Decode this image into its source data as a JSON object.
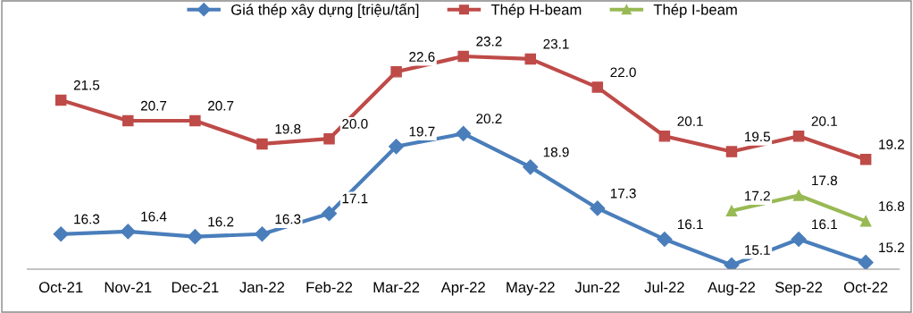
{
  "chart_data": {
    "type": "line",
    "categories": [
      "Oct-21",
      "Nov-21",
      "Dec-21",
      "Jan-22",
      "Feb-22",
      "Mar-22",
      "Apr-22",
      "May-22",
      "Jun-22",
      "Jul-22",
      "Aug-22",
      "Sep-22",
      "Oct-22"
    ],
    "series": [
      {
        "name": "Giá thép xây dựng [triệu/tấn]",
        "color": "#4a7ebb",
        "marker": "diamond",
        "values": [
          16.3,
          16.4,
          16.2,
          16.3,
          17.1,
          19.7,
          20.2,
          18.9,
          17.3,
          16.1,
          15.1,
          16.1,
          15.2
        ],
        "value_labels": [
          "16.3",
          "16.4",
          "16.2",
          "16.3",
          "17.1",
          "19.7",
          "20.2",
          "18.9",
          "17.3",
          "16.1",
          "15.1",
          "16.1",
          "15.2"
        ]
      },
      {
        "name": "Thép H-beam",
        "color": "#be4b48",
        "marker": "square",
        "values": [
          21.5,
          20.7,
          20.7,
          19.8,
          20.0,
          22.6,
          23.2,
          23.1,
          22.0,
          20.1,
          19.5,
          20.1,
          19.2
        ],
        "value_labels": [
          "21.5",
          "20.7",
          "20.7",
          "19.8",
          "20.0",
          "22.6",
          "23.2",
          "23.1",
          "22.0",
          "20.1",
          "19.5",
          "20.1",
          "19.2"
        ]
      },
      {
        "name": "Thép I-beam",
        "color": "#98b954",
        "marker": "triangle",
        "values": [
          null,
          null,
          null,
          null,
          null,
          null,
          null,
          null,
          null,
          null,
          17.2,
          17.8,
          16.8
        ],
        "value_labels": [
          null,
          null,
          null,
          null,
          null,
          null,
          null,
          null,
          null,
          null,
          "17.2",
          "17.8",
          "16.8"
        ]
      }
    ],
    "legend": "top",
    "grid": false,
    "line_style": "solid"
  }
}
